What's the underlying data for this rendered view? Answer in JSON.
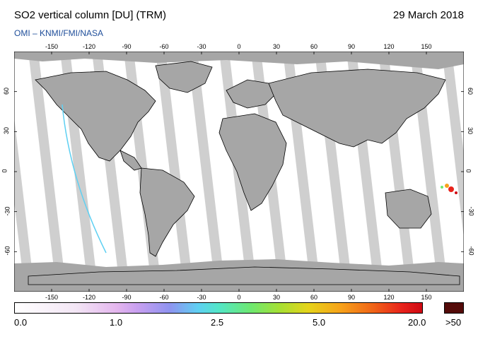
{
  "header": {
    "title": "SO2 vertical column [DU] (TRM)",
    "date": "29 March 2018",
    "credit": "OMI  –  KNMI/FMI/NASA"
  },
  "map": {
    "lon_ticks": [
      "-150",
      "-120",
      "-90",
      "-60",
      "-30",
      "0",
      "30",
      "60",
      "90",
      "120",
      "150"
    ],
    "lat_ticks": [
      "60",
      "30",
      "0",
      "-30",
      "-60"
    ],
    "colors": {
      "ocean": "#ffffff",
      "land_gap": "#a6a6a6",
      "swath_gap": "#cfcfcf",
      "coastline": "#000000"
    }
  },
  "colorbar": {
    "labels": [
      "0.0",
      "1.0",
      "2.5",
      "5.0",
      "20.0"
    ],
    "overflow_label": ">50",
    "overflow_color": "#540b09"
  }
}
